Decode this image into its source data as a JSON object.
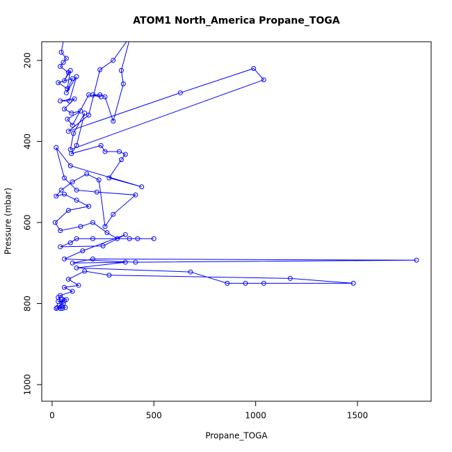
{
  "chart_data": {
    "type": "line",
    "title": "ATOM1 North_America Propane_TOGA",
    "xlabel": "Propane_TOGA",
    "ylabel": "Pressure (mbar)",
    "xlim": [
      -51,
      1862
    ],
    "ylim": [
      154,
      1041
    ],
    "y_reversed": true,
    "xticks": [
      0,
      500,
      1000,
      1500
    ],
    "yticks": [
      200,
      400,
      600,
      800,
      1000
    ],
    "markers": true,
    "grid": false,
    "x": [
      60,
      45,
      70,
      55,
      40,
      80,
      60,
      90,
      75,
      30,
      100,
      70,
      120,
      85,
      40,
      110,
      60,
      95,
      140,
      75,
      100,
      180,
      240,
      200,
      235,
      260,
      300,
      350,
      340,
      385,
      300,
      235,
      180,
      80,
      630,
      990,
      1040,
      90,
      105,
      160,
      120,
      95,
      240,
      260,
      330,
      360,
      340,
      280,
      440,
      90,
      20,
      60,
      120,
      220,
      410,
      300,
      260,
      230,
      170,
      100,
      45,
      20,
      60,
      120,
      180,
      80,
      15,
      40,
      140,
      200,
      270,
      320,
      420,
      500,
      380,
      200,
      120,
      90,
      40,
      250,
      360,
      150,
      60,
      410,
      1790,
      200,
      100,
      360,
      120,
      680,
      860,
      950,
      1040,
      1480,
      1170,
      280,
      160,
      80,
      130,
      60,
      100,
      40,
      70,
      30,
      55,
      25,
      50,
      35,
      60,
      45,
      30,
      65,
      40,
      20
    ],
    "series": [
      {
        "color": "#0000ff",
        "values": [
          140,
          180,
          195,
          205,
          215,
          230,
          250,
          225,
          270,
          255,
          245,
          280,
          240,
          300,
          300,
          295,
          320,
          330,
          325,
          345,
          360,
          285,
          290,
          285,
          285,
          290,
          350,
          258,
          225,
          140,
          200,
          223,
          335,
          375,
          280,
          220,
          248,
          420,
          380,
          330,
          410,
          430,
          410,
          425,
          425,
          432,
          445,
          490,
          512,
          460,
          415,
          490,
          520,
          525,
          532,
          580,
          610,
          495,
          480,
          500,
          520,
          535,
          530,
          545,
          560,
          570,
          600,
          620,
          610,
          600,
          625,
          640,
          640,
          640,
          640,
          640,
          640,
          650,
          660,
          658,
          630,
          670,
          690,
          698,
          693,
          690,
          700,
          698,
          712,
          722,
          750,
          750,
          750,
          750,
          738,
          730,
          720,
          740,
          755,
          760,
          770,
          780,
          790,
          795,
          800,
          810,
          812,
          805,
          793,
          790,
          785,
          810,
          812,
          812
        ]
      }
    ]
  }
}
